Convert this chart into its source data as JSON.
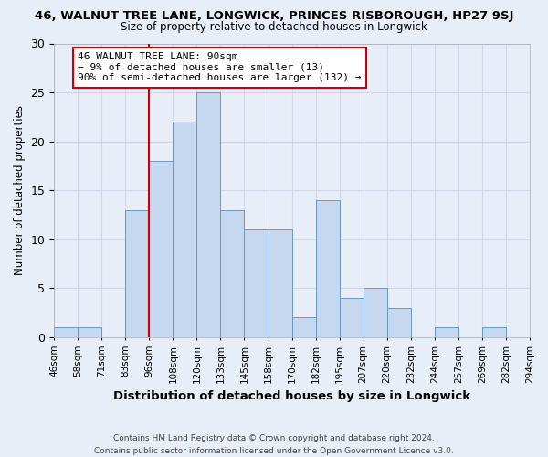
{
  "title": "46, WALNUT TREE LANE, LONGWICK, PRINCES RISBOROUGH, HP27 9SJ",
  "subtitle": "Size of property relative to detached houses in Longwick",
  "xlabel": "Distribution of detached houses by size in Longwick",
  "ylabel": "Number of detached properties",
  "bin_edges_labels": [
    "46sqm",
    "58sqm",
    "71sqm",
    "83sqm",
    "96sqm",
    "108sqm",
    "120sqm",
    "133sqm",
    "145sqm",
    "158sqm",
    "170sqm",
    "182sqm",
    "195sqm",
    "207sqm",
    "220sqm",
    "232sqm",
    "244sqm",
    "257sqm",
    "269sqm",
    "282sqm",
    "294sqm"
  ],
  "bar_heights": [
    1,
    1,
    0,
    13,
    18,
    22,
    25,
    13,
    11,
    11,
    2,
    14,
    4,
    5,
    3,
    0,
    1,
    0,
    1,
    0
  ],
  "bar_color": "#c5d8ef",
  "bar_edge_color": "#6699cc",
  "grid_color": "#d0d8e8",
  "vline_x": 4,
  "vline_color": "#cc0000",
  "annotation_text": "46 WALNUT TREE LANE: 90sqm\n← 9% of detached houses are smaller (13)\n90% of semi-detached houses are larger (132) →",
  "annotation_box_color": "white",
  "annotation_box_edge_color": "#cc0000",
  "ylim": [
    0,
    30
  ],
  "yticks": [
    0,
    5,
    10,
    15,
    20,
    25,
    30
  ],
  "footer_line1": "Contains HM Land Registry data © Crown copyright and database right 2024.",
  "footer_line2": "Contains public sector information licensed under the Open Government Licence v3.0.",
  "bg_color": "#e8eef8",
  "title_fontsize": 9.5,
  "subtitle_fontsize": 8.5,
  "tick_fontsize": 7.5,
  "ylabel_fontsize": 8.5,
  "xlabel_fontsize": 9.5,
  "footer_fontsize": 6.5,
  "ann_fontsize": 8
}
